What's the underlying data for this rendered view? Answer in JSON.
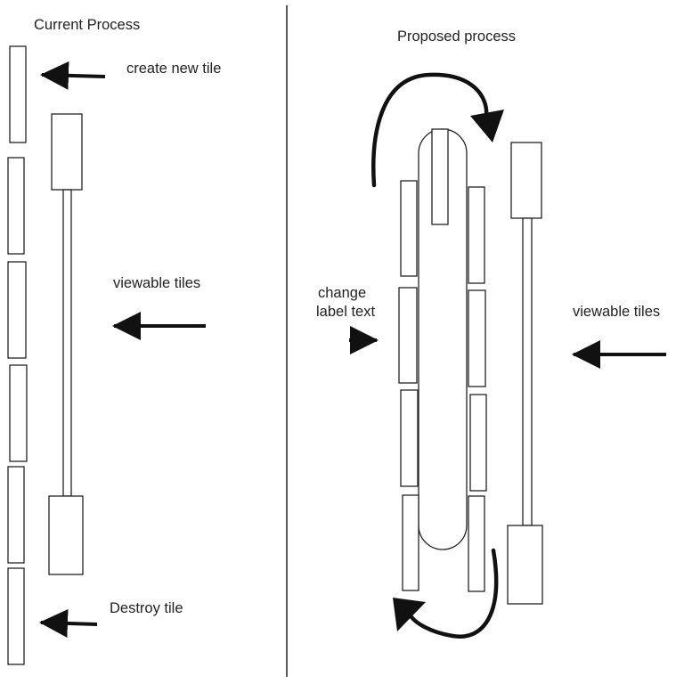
{
  "left_panel": {
    "title": "Current Process",
    "create_label": "create new tile",
    "viewable_label": "viewable tiles",
    "destroy_label": "Destroy tile"
  },
  "right_panel": {
    "title": "Proposed process",
    "change_label_line1": "change",
    "change_label_line2": "label text",
    "viewable_label": "viewable tiles"
  },
  "colors": {
    "line": "#222222",
    "arrow": "#111111",
    "background": "#ffffff"
  }
}
